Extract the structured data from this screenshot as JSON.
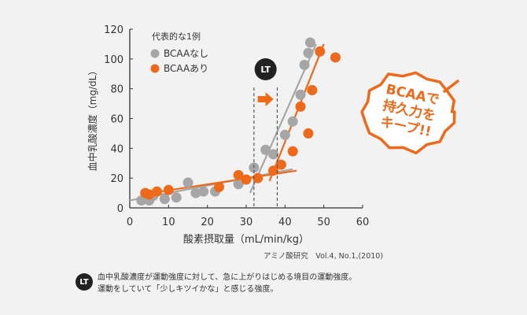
{
  "chart_data": {
    "type": "scatter",
    "xlabel": "酸素摂取量（mL/min/kg）",
    "ylabel": "血中乳酸濃度（mg/dL）",
    "xlim": [
      0,
      60
    ],
    "ylim": [
      0,
      120
    ],
    "xticks": [
      0,
      10,
      20,
      30,
      40,
      50,
      60
    ],
    "yticks": [
      0,
      20,
      40,
      60,
      80,
      100,
      120
    ],
    "grid": false,
    "legend": {
      "title": "代表的な1例",
      "position": "top-left"
    },
    "series": [
      {
        "name": "BCAAなし",
        "color": "#a6a6a6",
        "points": [
          [
            3,
            5
          ],
          [
            5,
            5
          ],
          [
            6,
            8
          ],
          [
            9,
            6
          ],
          [
            12,
            7
          ],
          [
            15,
            17
          ],
          [
            17,
            10
          ],
          [
            19,
            11
          ],
          [
            22,
            11
          ],
          [
            28,
            16
          ],
          [
            32,
            27
          ],
          [
            35,
            39
          ],
          [
            37,
            36
          ],
          [
            40,
            49
          ],
          [
            42,
            58
          ],
          [
            44,
            76
          ],
          [
            45,
            96
          ],
          [
            46,
            104
          ],
          [
            46.5,
            111
          ]
        ],
        "trend_lines": [
          [
            [
              0,
              5
            ],
            [
              42,
              26
            ]
          ],
          [
            [
              31,
              10
            ],
            [
              48,
              110
            ]
          ]
        ]
      },
      {
        "name": "BCAAあり",
        "color": "#ee6a1a",
        "points": [
          [
            4,
            10
          ],
          [
            5,
            9
          ],
          [
            7,
            11
          ],
          [
            10,
            12
          ],
          [
            23,
            14
          ],
          [
            28,
            22
          ],
          [
            30,
            19
          ],
          [
            33,
            20
          ],
          [
            37,
            25
          ],
          [
            39,
            29
          ],
          [
            42,
            38
          ],
          [
            44,
            68
          ],
          [
            46,
            50
          ],
          [
            47,
            79
          ],
          [
            49,
            105
          ],
          [
            53,
            101
          ]
        ],
        "trend_lines": [
          [
            [
              3,
              9
            ],
            [
              43,
              25
            ]
          ],
          [
            [
              36,
              18
            ],
            [
              50,
              110
            ]
          ]
        ]
      }
    ],
    "lt_markers": {
      "label": "LT",
      "x": [
        32,
        38
      ]
    }
  },
  "stamp": {
    "lines": [
      "BCAAで",
      "持久力を",
      "キープ!!"
    ],
    "color": "#ee6a1a"
  },
  "source": "アミノ酸研究　Vol.4, No.1,(2010)",
  "note": {
    "badge": "LT",
    "line1": "血中乳酸濃度が運動強度に対して、急に上がりはじめる境目の運動強度。",
    "line2": "運動をしていて「少しキツイかな」と感じる強度。"
  }
}
